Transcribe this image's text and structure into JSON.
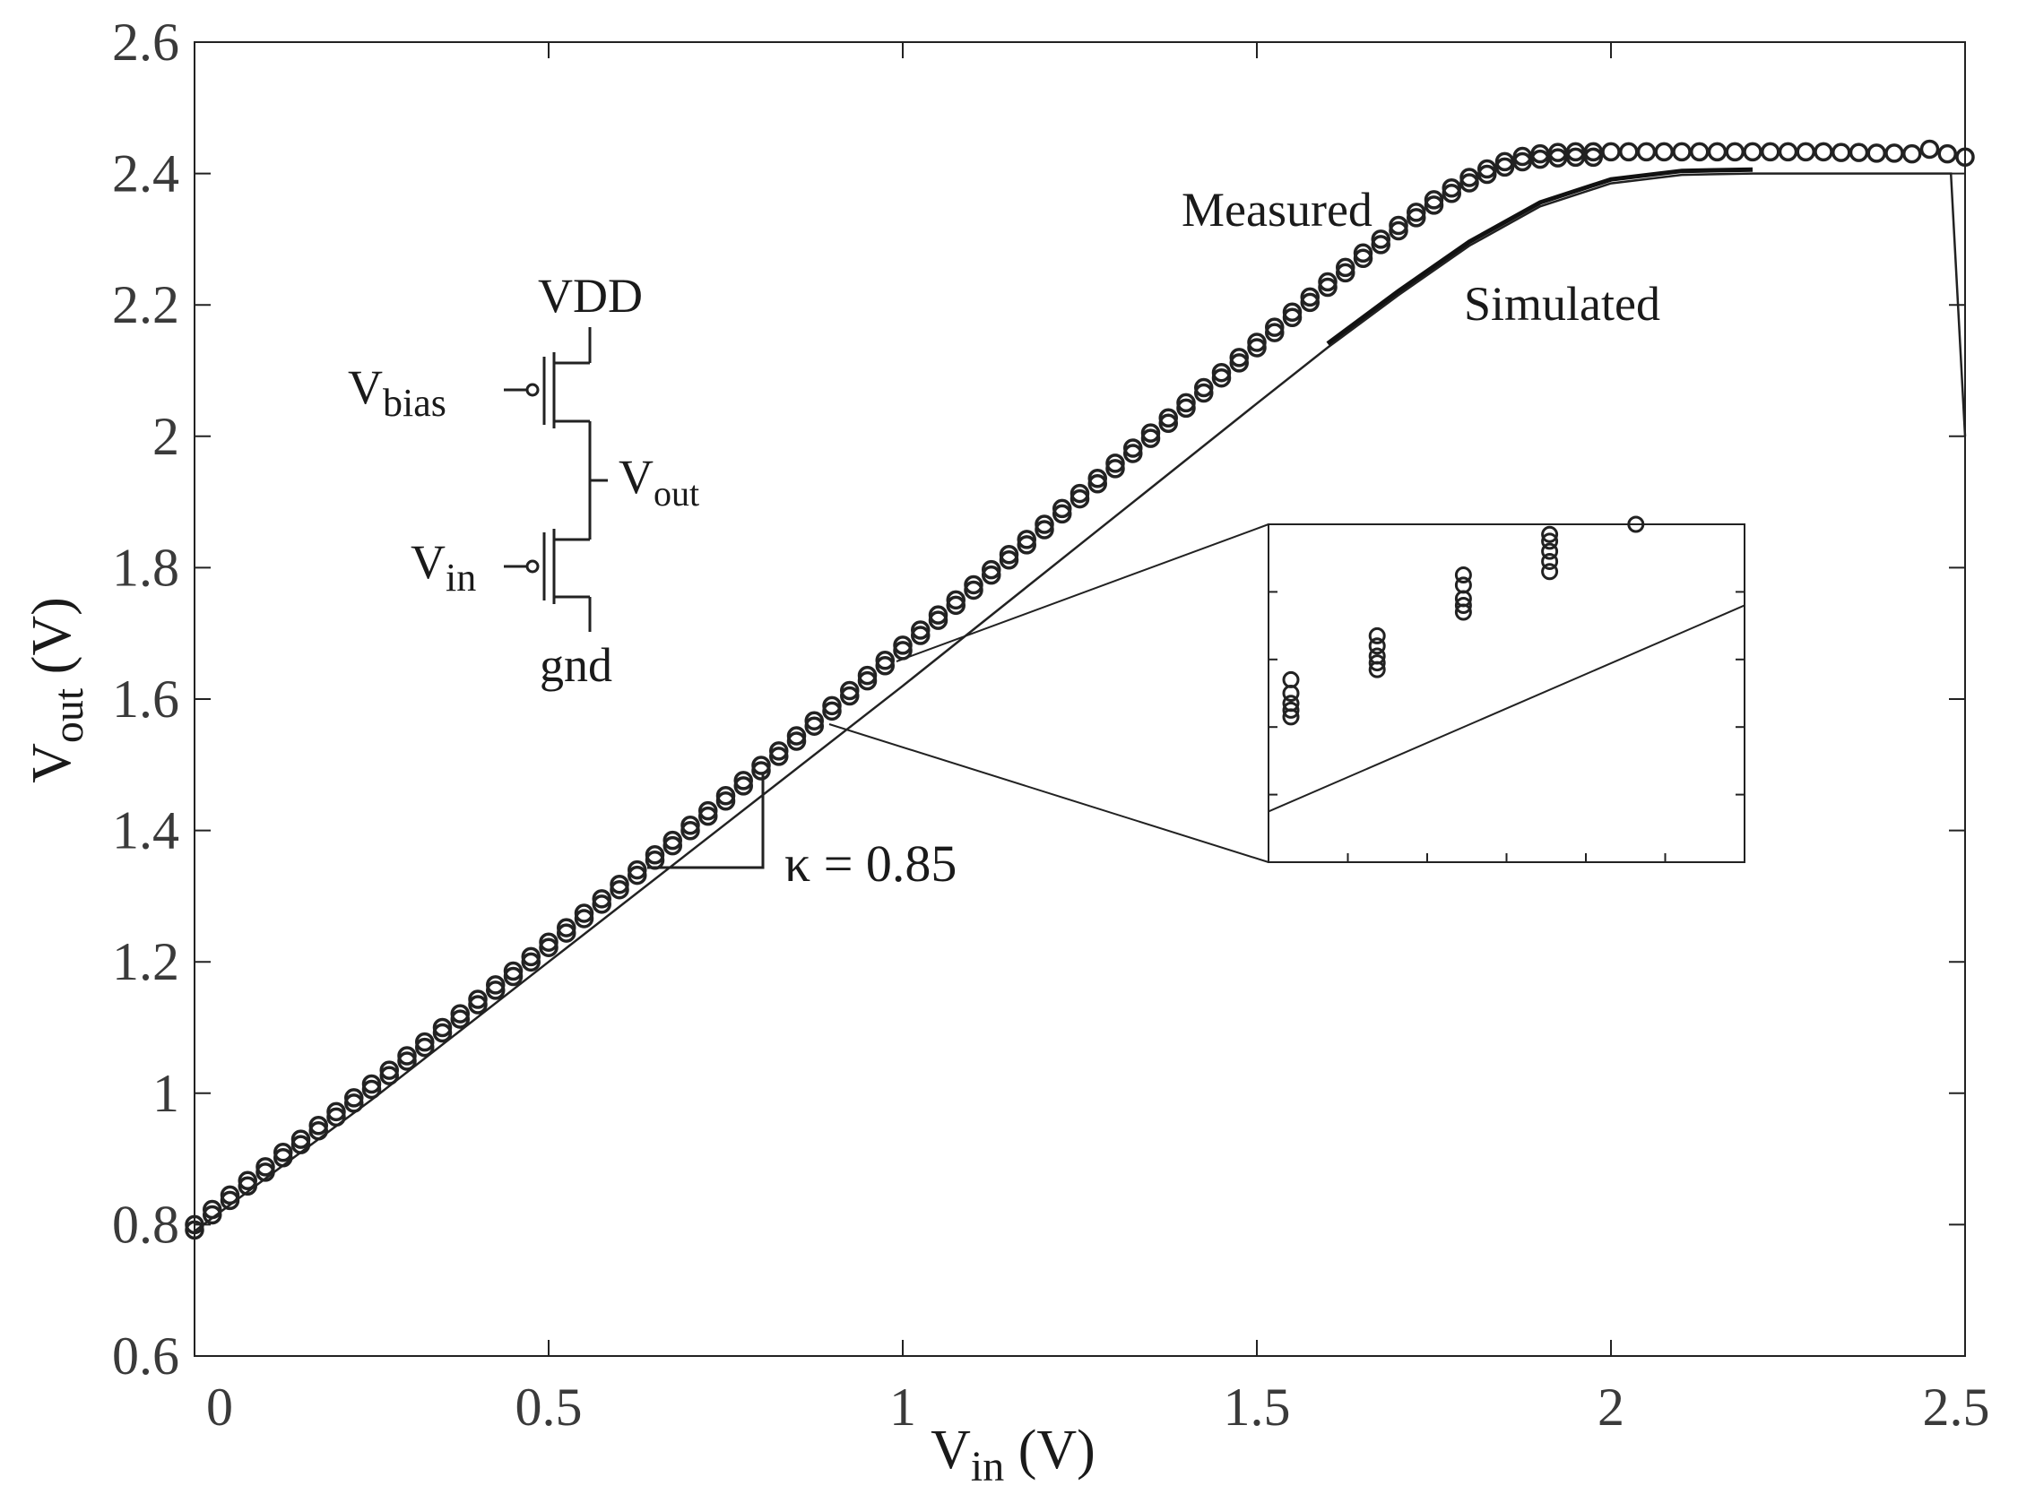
{
  "chart_data": {
    "type": "scatter",
    "title": "",
    "xlabel": {
      "main": "V",
      "sub": "in",
      "unit": " (V)"
    },
    "ylabel": {
      "main": "V",
      "sub": "out",
      "unit": " (V)"
    },
    "xlim": [
      0,
      2.5
    ],
    "ylim": [
      0.6,
      2.6
    ],
    "grid": false,
    "xticks": [
      {
        "value": 0,
        "label": "0"
      },
      {
        "value": 0.5,
        "label": "0.5"
      },
      {
        "value": 1,
        "label": "1"
      },
      {
        "value": 1.5,
        "label": "1.5"
      },
      {
        "value": 2,
        "label": "2"
      },
      {
        "value": 2.5,
        "label": "2.5"
      }
    ],
    "yticks": [
      {
        "value": 0.6,
        "label": "0.6"
      },
      {
        "value": 0.8,
        "label": "0.8"
      },
      {
        "value": 1.0,
        "label": "1"
      },
      {
        "value": 1.2,
        "label": "1.2"
      },
      {
        "value": 1.4,
        "label": "1.4"
      },
      {
        "value": 1.6,
        "label": "1.6"
      },
      {
        "value": 1.8,
        "label": "1.8"
      },
      {
        "value": 2.0,
        "label": "2"
      },
      {
        "value": 2.2,
        "label": "2.2"
      },
      {
        "value": 2.4,
        "label": "2.4"
      },
      {
        "value": 2.6,
        "label": "2.6"
      }
    ],
    "series": [
      {
        "name": "Measured",
        "style": "circles",
        "x": [
          0.0,
          0.025,
          0.05,
          0.075,
          0.1,
          0.125,
          0.15,
          0.175,
          0.2,
          0.225,
          0.25,
          0.275,
          0.3,
          0.325,
          0.35,
          0.375,
          0.4,
          0.425,
          0.45,
          0.475,
          0.5,
          0.525,
          0.55,
          0.575,
          0.6,
          0.625,
          0.65,
          0.675,
          0.7,
          0.725,
          0.75,
          0.775,
          0.8,
          0.825,
          0.85,
          0.875,
          0.9,
          0.925,
          0.95,
          0.975,
          1.0,
          1.025,
          1.05,
          1.075,
          1.1,
          1.125,
          1.15,
          1.175,
          1.2,
          1.225,
          1.25,
          1.275,
          1.3,
          1.325,
          1.35,
          1.375,
          1.4,
          1.425,
          1.45,
          1.475,
          1.5,
          1.525,
          1.55,
          1.575,
          1.6,
          1.625,
          1.65,
          1.675,
          1.7,
          1.725,
          1.75,
          1.775,
          1.8,
          1.825,
          1.85,
          1.875,
          1.9,
          1.925,
          1.95,
          1.975,
          2.0,
          2.025,
          2.05,
          2.075,
          2.1,
          2.125,
          2.15,
          2.175,
          2.2,
          2.225,
          2.25,
          2.275,
          2.3,
          2.325,
          2.35,
          2.375,
          2.4,
          2.425,
          2.45,
          2.475,
          2.5
        ],
        "y": [
          0.8,
          0.823,
          0.845,
          0.867,
          0.888,
          0.91,
          0.93,
          0.951,
          0.972,
          0.993,
          1.014,
          1.035,
          1.057,
          1.078,
          1.1,
          1.121,
          1.143,
          1.165,
          1.186,
          1.208,
          1.23,
          1.252,
          1.274,
          1.296,
          1.318,
          1.34,
          1.363,
          1.385,
          1.408,
          1.43,
          1.453,
          1.476,
          1.499,
          1.521,
          1.544,
          1.567,
          1.59,
          1.613,
          1.636,
          1.659,
          1.682,
          1.705,
          1.728,
          1.751,
          1.774,
          1.797,
          1.82,
          1.843,
          1.866,
          1.89,
          1.913,
          1.936,
          1.959,
          1.982,
          2.005,
          2.028,
          2.051,
          2.074,
          2.097,
          2.12,
          2.143,
          2.166,
          2.189,
          2.212,
          2.235,
          2.257,
          2.279,
          2.3,
          2.321,
          2.341,
          2.36,
          2.378,
          2.394,
          2.407,
          2.418,
          2.426,
          2.43,
          2.432,
          2.433,
          2.433,
          2.433,
          2.433,
          2.433,
          2.433,
          2.433,
          2.433,
          2.433,
          2.433,
          2.433,
          2.433,
          2.433,
          2.433,
          2.433,
          2.432,
          2.432,
          2.431,
          2.431,
          2.43,
          2.437,
          2.43,
          2.425
        ]
      },
      {
        "name": "Simulated",
        "style": "line",
        "x": [
          0.0,
          0.25,
          0.5,
          0.75,
          1.0,
          1.25,
          1.5,
          1.6,
          1.7,
          1.8,
          1.9,
          2.0,
          2.1,
          2.2,
          2.3,
          2.4,
          2.48,
          2.5
        ],
        "y": [
          0.79,
          0.99,
          1.2,
          1.41,
          1.62,
          1.835,
          2.05,
          2.135,
          2.215,
          2.29,
          2.35,
          2.385,
          2.398,
          2.4,
          2.4,
          2.4,
          2.4,
          2.0
        ]
      }
    ],
    "annotations": {
      "measured_label": "Measured",
      "simulated_label": "Simulated",
      "kappa_label": "κ = 0.85",
      "schematic": {
        "vdd": "VDD",
        "gnd": "gnd",
        "vbias_main": "V",
        "vbias_sub": "bias",
        "vin_main": "V",
        "vin_sub": "in",
        "vout_main": "V",
        "vout_sub": "out"
      }
    },
    "inset": {
      "type": "zoom",
      "measured_clusters": [
        {
          "x": 0,
          "y": [
            0.54,
            0.5,
            0.47,
            0.45,
            0.43
          ]
        },
        {
          "x": 0.2,
          "y": [
            0.67,
            0.64,
            0.61,
            0.59,
            0.57
          ]
        },
        {
          "x": 0.4,
          "y": [
            0.85,
            0.82,
            0.78,
            0.76,
            0.74
          ]
        },
        {
          "x": 0.6,
          "y": [
            0.97,
            0.95,
            0.92,
            0.89,
            0.86
          ]
        },
        {
          "x": 0.8,
          "y": [
            1.0
          ]
        }
      ],
      "simulated_line": [
        [
          0,
          0.15
        ],
        [
          1,
          0.76
        ]
      ]
    }
  }
}
